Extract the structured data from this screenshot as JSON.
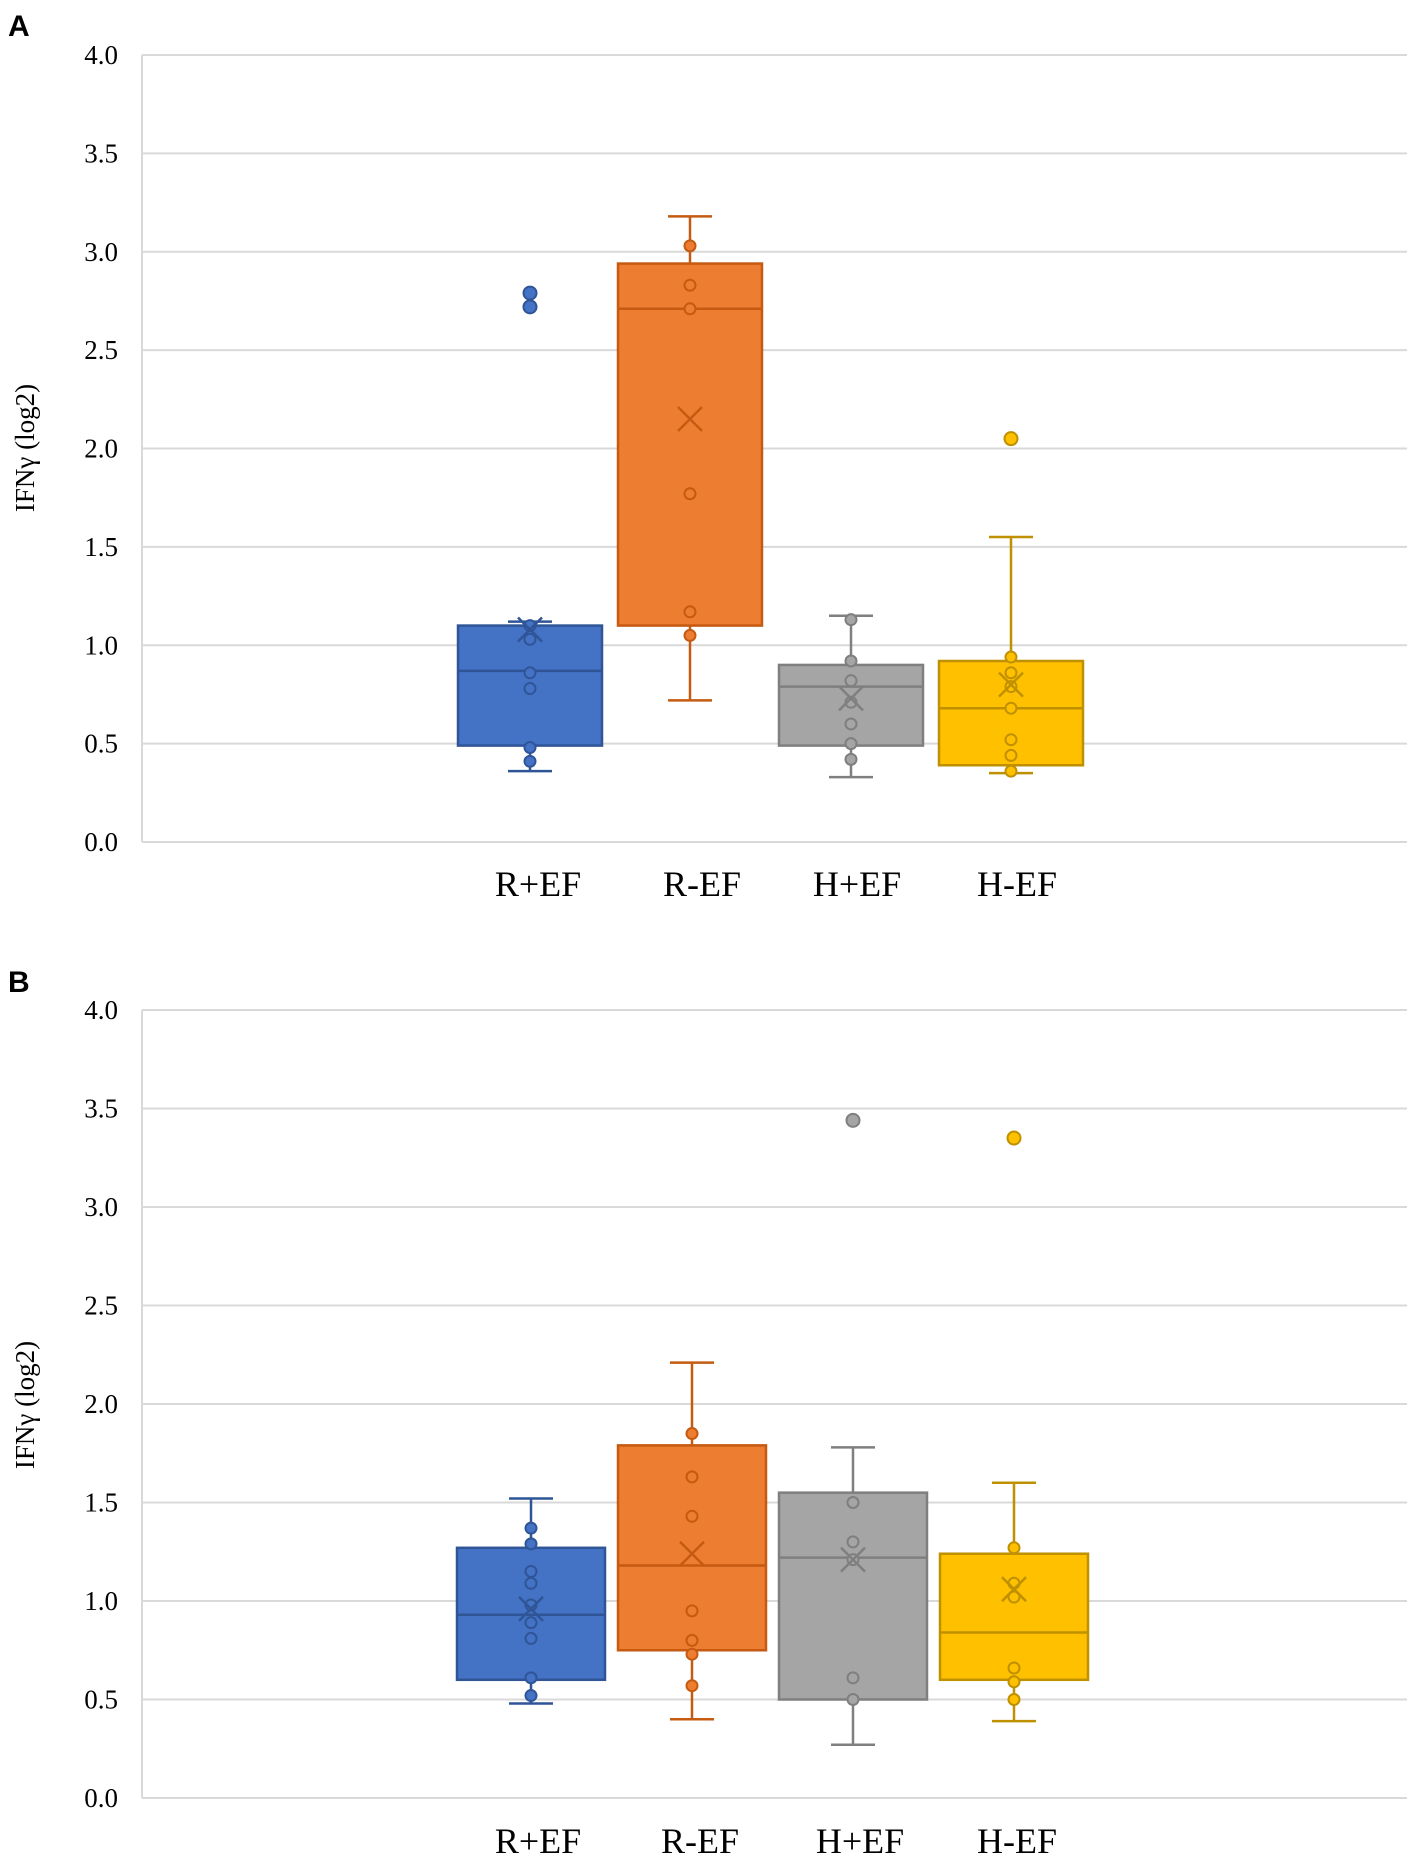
{
  "chart_data": [
    {
      "type": "box",
      "panel": "A",
      "ylabel": "IFNγ (log2)",
      "ylim": [
        0,
        4
      ],
      "yticks": [
        "0.0",
        "0.5",
        "1.0",
        "1.5",
        "2.0",
        "2.5",
        "3.0",
        "3.5",
        "4.0"
      ],
      "categories": [
        "R+EF",
        "R-EF",
        "H+EF",
        "H-EF"
      ],
      "series": [
        {
          "name": "R+EF",
          "color": "#4472C4",
          "stroke": "#2F5597",
          "whisker_low": 0.36,
          "q1": 0.49,
          "median": 0.87,
          "q3": 1.1,
          "whisker_high": 1.12,
          "mean": 1.08,
          "points": [
            0.41,
            0.48,
            0.78,
            0.86,
            1.03,
            1.1
          ],
          "outliers": [
            2.72,
            2.79
          ]
        },
        {
          "name": "R-EF",
          "color": "#ED7D31",
          "stroke": "#C55A11",
          "whisker_low": 0.72,
          "q1": 1.1,
          "median": 2.71,
          "q3": 2.94,
          "whisker_high": 3.18,
          "mean": 2.15,
          "points": [
            1.05,
            1.17,
            1.77,
            2.71,
            2.83,
            3.03
          ],
          "outliers": []
        },
        {
          "name": "H+EF",
          "color": "#A5A5A5",
          "stroke": "#7F7F7F",
          "whisker_low": 0.33,
          "q1": 0.49,
          "median": 0.79,
          "q3": 0.9,
          "whisker_high": 1.15,
          "mean": 0.73,
          "points": [
            0.42,
            0.5,
            0.6,
            0.71,
            0.82,
            0.92,
            1.13
          ],
          "outliers": []
        },
        {
          "name": "H-EF",
          "color": "#FFC000",
          "stroke": "#BF9000",
          "whisker_low": 0.35,
          "q1": 0.39,
          "median": 0.68,
          "q3": 0.92,
          "whisker_high": 1.55,
          "mean": 0.8,
          "points": [
            0.36,
            0.44,
            0.52,
            0.68,
            0.79,
            0.86,
            0.94
          ],
          "outliers": [
            2.05
          ]
        }
      ]
    },
    {
      "type": "box",
      "panel": "B",
      "ylabel": "IFNγ (log2)",
      "ylim": [
        0,
        4
      ],
      "yticks": [
        "0.0",
        "0.5",
        "1.0",
        "1.5",
        "2.0",
        "2.5",
        "3.0",
        "3.5",
        "4.0"
      ],
      "categories": [
        "R+EF",
        "R-EF",
        "H+EF",
        "H-EF"
      ],
      "series": [
        {
          "name": "R+EF",
          "color": "#4472C4",
          "stroke": "#2F5597",
          "whisker_low": 0.48,
          "q1": 0.6,
          "median": 0.93,
          "q3": 1.27,
          "whisker_high": 1.52,
          "mean": 0.96,
          "points": [
            0.52,
            0.61,
            0.81,
            0.89,
            0.98,
            1.09,
            1.15,
            1.29,
            1.37
          ],
          "outliers": []
        },
        {
          "name": "R-EF",
          "color": "#ED7D31",
          "stroke": "#C55A11",
          "whisker_low": 0.4,
          "q1": 0.75,
          "median": 1.18,
          "q3": 1.79,
          "whisker_high": 2.21,
          "mean": 1.24,
          "points": [
            0.57,
            0.73,
            0.8,
            0.95,
            1.43,
            1.63,
            1.85
          ],
          "outliers": []
        },
        {
          "name": "H+EF",
          "color": "#A5A5A5",
          "stroke": "#7F7F7F",
          "whisker_low": 0.27,
          "q1": 0.5,
          "median": 1.22,
          "q3": 1.55,
          "whisker_high": 1.78,
          "mean": 1.21,
          "points": [
            0.5,
            0.61,
            1.21,
            1.3,
            1.5
          ],
          "outliers": [
            3.44
          ]
        },
        {
          "name": "H-EF",
          "color": "#FFC000",
          "stroke": "#BF9000",
          "whisker_low": 0.39,
          "q1": 0.6,
          "median": 0.84,
          "q3": 1.24,
          "whisker_high": 1.6,
          "mean": 1.06,
          "points": [
            0.5,
            0.59,
            0.66,
            1.02,
            1.09,
            1.27
          ],
          "outliers": [
            3.35
          ]
        }
      ]
    }
  ]
}
